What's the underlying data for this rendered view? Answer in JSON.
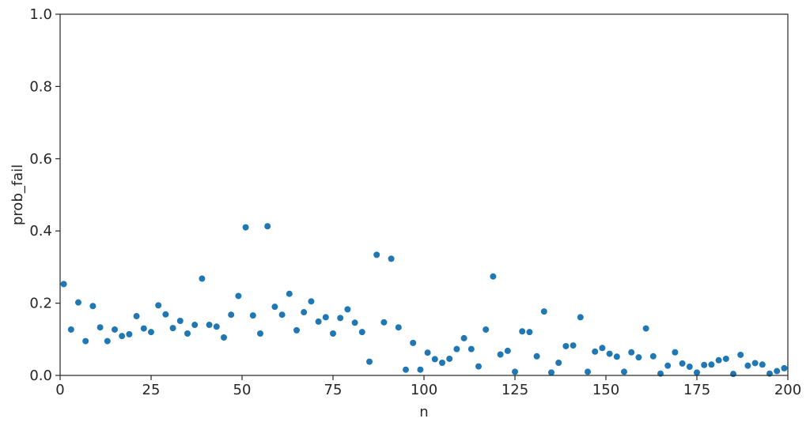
{
  "chart_data": {
    "type": "scatter",
    "title": "",
    "xlabel": "n",
    "ylabel": "prob_fail",
    "xlim": [
      0,
      200
    ],
    "ylim": [
      0,
      1
    ],
    "xticks": [
      "0",
      "25",
      "50",
      "75",
      "100",
      "125",
      "150",
      "175",
      "200"
    ],
    "yticks": [
      "0.0",
      "0.2",
      "0.4",
      "0.6",
      "0.8",
      "1.0"
    ],
    "grid": false,
    "marker_color": "#1f77b4",
    "series": [
      {
        "x": [
          1,
          3,
          5,
          7,
          9,
          11,
          13,
          15,
          17,
          19,
          21,
          23,
          25,
          27,
          29,
          31,
          33,
          35,
          37,
          39,
          41,
          43,
          45,
          47,
          49,
          51,
          53,
          55,
          57,
          59,
          61,
          63,
          65,
          67,
          69,
          71,
          73,
          75,
          77,
          79,
          81,
          83,
          85,
          87,
          89,
          91,
          93,
          95,
          97,
          99,
          101,
          103,
          105,
          107,
          109,
          111,
          113,
          115,
          117,
          119,
          121,
          123,
          125,
          127,
          129,
          131,
          133,
          135,
          137,
          139,
          141,
          143,
          145,
          147,
          149,
          151,
          153,
          155,
          157,
          159,
          161,
          163,
          165,
          167,
          169,
          171,
          173,
          175,
          177,
          179,
          181,
          183,
          185,
          187,
          189,
          191,
          193,
          195,
          197,
          199
        ],
        "y": [
          0.253,
          0.127,
          0.202,
          0.095,
          0.192,
          0.133,
          0.095,
          0.127,
          0.109,
          0.114,
          0.164,
          0.13,
          0.12,
          0.194,
          0.169,
          0.131,
          0.151,
          0.116,
          0.14,
          0.268,
          0.14,
          0.135,
          0.105,
          0.168,
          0.22,
          0.41,
          0.166,
          0.116,
          0.413,
          0.19,
          0.168,
          0.226,
          0.125,
          0.175,
          0.205,
          0.149,
          0.161,
          0.116,
          0.159,
          0.183,
          0.146,
          0.12,
          0.038,
          0.334,
          0.147,
          0.323,
          0.133,
          0.016,
          0.09,
          0.016,
          0.063,
          0.045,
          0.035,
          0.046,
          0.073,
          0.103,
          0.073,
          0.025,
          0.127,
          0.274,
          0.058,
          0.068,
          0.01,
          0.122,
          0.12,
          0.053,
          0.177,
          0.008,
          0.035,
          0.081,
          0.083,
          0.161,
          0.01,
          0.066,
          0.076,
          0.06,
          0.052,
          0.01,
          0.064,
          0.05,
          0.13,
          0.053,
          0.005,
          0.027,
          0.064,
          0.033,
          0.024,
          0.008,
          0.029,
          0.03,
          0.042,
          0.046,
          0.004,
          0.057,
          0.027,
          0.034,
          0.03,
          0.005,
          0.012,
          0.02
        ]
      }
    ]
  }
}
